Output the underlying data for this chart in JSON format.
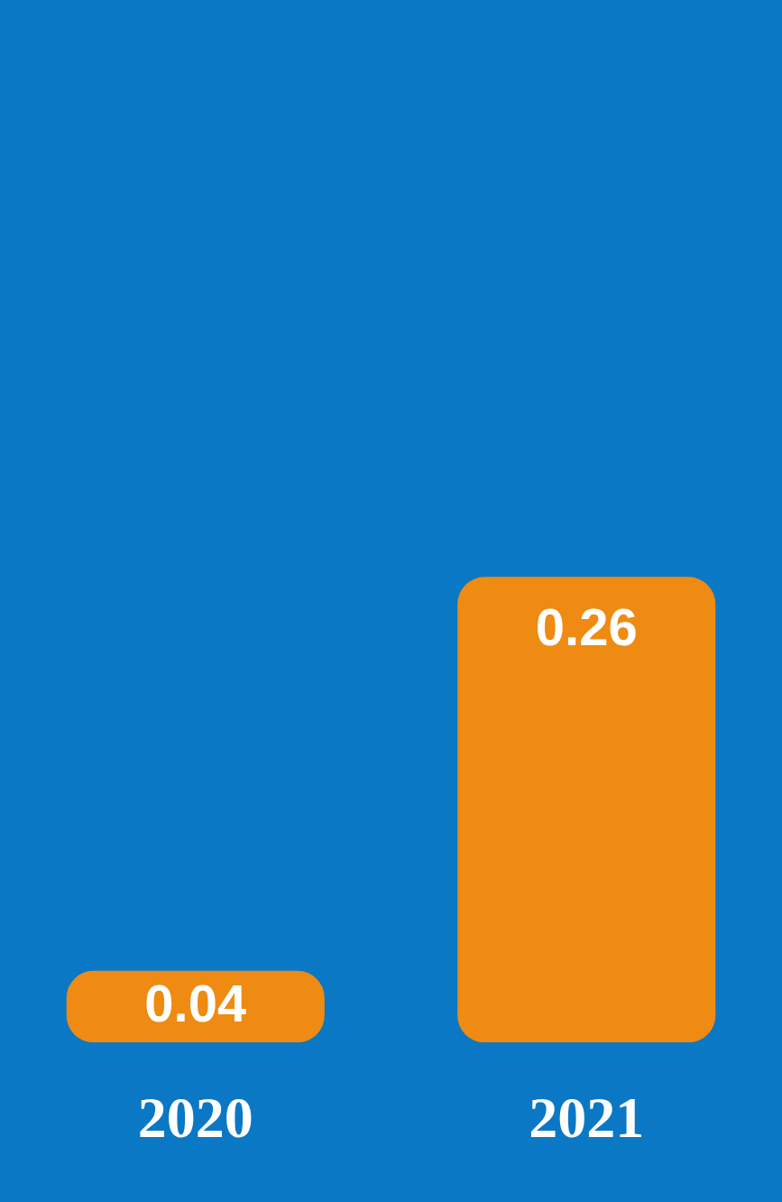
{
  "chart_data": {
    "type": "bar",
    "categories": [
      "2020",
      "2021"
    ],
    "values": [
      0.04,
      0.26
    ],
    "color": "#ef8a12",
    "data_labels": true
  }
}
